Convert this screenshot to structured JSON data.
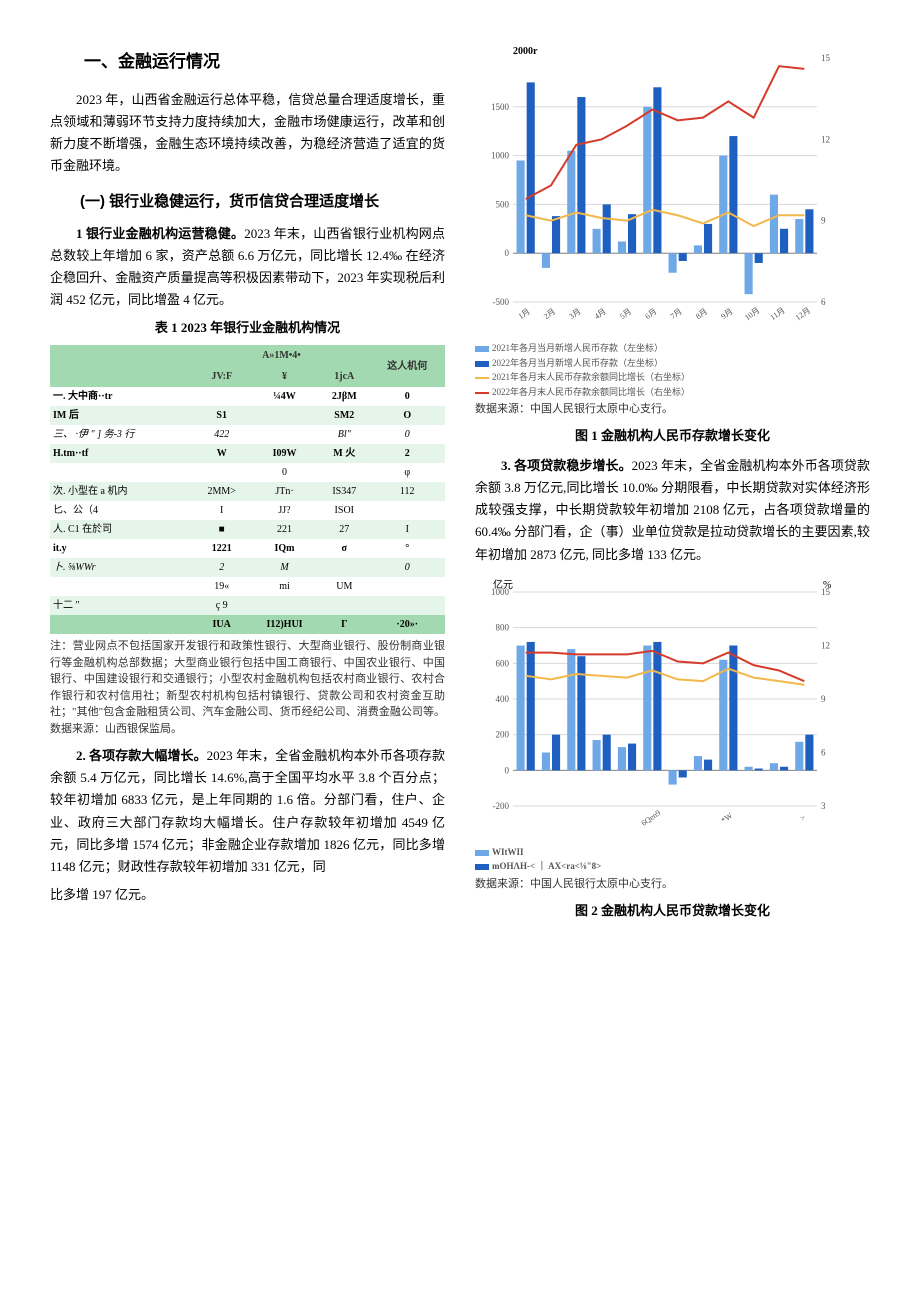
{
  "top_fragment": "比多增 197 亿元。",
  "section1": {
    "heading": "一、金融运行情况",
    "intro": "2023 年，山西省金融运行总体平稳，信贷总量合理适度增长，重点领域和薄弱环节支持力度持续加大，金融市场健康运行，改革和创新力度不断增强，金融生态环境持续改善，为稳经济营造了适宜的货币金融环境。",
    "sub1_heading": "(一) 银行业稳健运行，货币信贷合理适度增长",
    "p1_lead": "1 银行业金融机构运营稳健。",
    "p1_body": "2023 年末，山西省银行业机构网点总数较上年增加 6 家，资产总额 6.6 万亿元，同比增长 12.4‰ 在经济企稳回升、金融资产质量提高等积极因素带动下，2023 年实现税后利润 452 亿元，同比增盈 4 亿元。",
    "table_caption": "表 1 2023 年银行业金融机构情况",
    "p2_lead": "2. 各项存款大幅增长。",
    "p2_body": "2023 年末，全省金融机构本外币各项存款余额 5.4 万亿元，同比增长 14.6%,高于全国平均水平 3.8 个百分点；较年初增加 6833 亿元，是上年同期的 1.6 倍。分部门看，住户、企业、政府三大部门存款均大幅增长。住户存款较年初增加 4549 亿元，同比多增 1574 亿元；非金融企业存款增加 1826 亿元，同比多增 1148 亿元；财政性存款较年初增加 331 亿元，同",
    "p3_lead": "3. 各项贷款稳步增长。",
    "p3_body": "2023 年末，全省金融机构本外币各项贷款余额 3.8 万亿元,同比增长 10.0‰ 分期限看，中长期贷款对实体经济形成较强支撑，中长期贷款较年初增加 2108 亿元，占各项贷款增量的 60.4‰ 分部门看，企（事）业单位贷款是拉动贷款增长的主要因素,较年初增加 2873 亿元, 同比多增 133 亿元。"
  },
  "table1": {
    "header_group": "A»1M•4•",
    "columns": [
      "",
      "JV:F",
      "¥",
      "1jcA",
      "这人机何"
    ],
    "rows": [
      {
        "c": [
          "一. 大中商··tr",
          "",
          "¼4W",
          "2JβM",
          "0"
        ],
        "alt": false,
        "b": true
      },
      {
        "c": [
          "IM 后",
          "S1",
          "",
          "SM2",
          "O"
        ],
        "alt": true,
        "b": true
      },
      {
        "c": [
          "三、 ·伊 \" ] 务-3 行",
          "422",
          "",
          "Bl\"",
          "0"
        ],
        "alt": false,
        "b": false,
        "i": true
      },
      {
        "c": [
          "H.tm··tf",
          "W",
          "I09W",
          "M 火",
          "2"
        ],
        "alt": true,
        "b": true
      },
      {
        "c": [
          "",
          "",
          "0",
          "",
          "φ"
        ],
        "alt": false,
        "b": false
      },
      {
        "c": [
          "次. 小型在 a 机内",
          "2MM>",
          "JTn·",
          "IS347",
          "112"
        ],
        "alt": true,
        "b": false
      },
      {
        "c": [
          "匕、公（4",
          "I",
          "JJ?",
          "ISOI",
          ""
        ],
        "alt": false,
        "b": false
      },
      {
        "c": [
          "人. C1 在於司",
          "■",
          "221",
          "27",
          "I"
        ],
        "alt": true,
        "b": false
      },
      {
        "c": [
          "it.y",
          "1221",
          "IQm",
          "σ",
          "°"
        ],
        "alt": false,
        "b": true
      },
      {
        "c": [
          "卜. ⅝WWr",
          "2",
          "M",
          "",
          "0"
        ],
        "alt": true,
        "b": false,
        "i": true
      },
      {
        "c": [
          "",
          "19«",
          "mi",
          "UM",
          ""
        ],
        "alt": false,
        "b": false
      },
      {
        "c": [
          "十二 \"",
          "ç 9",
          "",
          "",
          ""
        ],
        "alt": true,
        "b": false
      }
    ],
    "total_row": [
      "",
      "IUA",
      "I12)HUI",
      "Γ",
      "·20»·"
    ]
  },
  "table_note": "注：营业网点不包括国家开发银行和政策性银行、大型商业银行、股份制商业银行等金融机构总部数据；大型商业银行包括中国工商银行、中国农业银行、中国银行、中国建设银行和交通银行；小型农村金融机构包括农村商业银行、农村合作银行和农村信用社；新型农村机构包括村镇银行、贷款公司和农村资金互助社；\"其他\"包含金融租赁公司、汽车金融公司、货币经纪公司、消费金融公司等。数据来源：山西银保监局。",
  "chart1": {
    "caption": "图 1 金融机构人民币存款增长变化",
    "source": "数据来源：中国人民银行太原中心支行。",
    "y_left_max": 2000,
    "y_left_label": "2000r",
    "y_left_ticks": [
      -500,
      0,
      500,
      1000,
      1500
    ],
    "y_right_ticks": [
      6,
      9,
      12,
      15
    ],
    "x_ticks": [
      "1月",
      "2月",
      "3月",
      "4月",
      "5月",
      "6月",
      "7月",
      "8月",
      "9月",
      "10月",
      "11月",
      "12月"
    ],
    "bars_a": [
      950,
      -150,
      1050,
      250,
      120,
      1500,
      -200,
      80,
      1000,
      -420,
      600,
      350
    ],
    "bars_b": [
      1750,
      380,
      1600,
      500,
      400,
      1700,
      -80,
      300,
      1200,
      -100,
      250,
      450
    ],
    "line_a": [
      9.2,
      9.0,
      9.3,
      9.1,
      9.0,
      9.4,
      9.2,
      8.9,
      9.3,
      8.8,
      9.2,
      9.2
    ],
    "line_b": [
      9.8,
      10.3,
      11.8,
      12.0,
      12.5,
      13.1,
      12.7,
      12.8,
      13.4,
      12.8,
      14.7,
      14.6
    ],
    "colors": {
      "bar_a": "#6fa8e6",
      "bar_b": "#1f5fbf",
      "line_a": "#f2b84b",
      "line_b": "#d63a2b",
      "grid": "#d9d9d9",
      "axis": "#888",
      "text": "#555"
    },
    "legend": [
      {
        "sw": "bar",
        "color": "#6fa8e6",
        "label": "2021年各月当月新增人民币存款（左坐标）"
      },
      {
        "sw": "bar",
        "color": "#1f5fbf",
        "label": "2022年各月当月新增人民币存款（左坐标）"
      },
      {
        "sw": "line",
        "color": "#f2b84b",
        "label": "2021年各月末人民币存款余额同比增长（右坐标）"
      },
      {
        "sw": "line",
        "color": "#d63a2b",
        "label": "2022年各月末人民币存款余额同比增长（右坐标）"
      }
    ]
  },
  "chart2": {
    "caption": "图 2 金融机构人民币贷款增长变化",
    "source": "数据来源：中国人民银行太原中心支行。",
    "y_left_ticks": [
      -200,
      0,
      200,
      400,
      600,
      800,
      1000
    ],
    "y_left_unit": "亿元",
    "y_right_unit": "%",
    "y_right_ticks": [
      3,
      6,
      9,
      12,
      15
    ],
    "x_ticks": [
      "",
      "",
      "",
      "",
      "",
      "6Qen9",
      "",
      "",
      "*W",
      "",
      "",
      ">"
    ],
    "bars_a": [
      700,
      100,
      680,
      170,
      130,
      700,
      -80,
      80,
      620,
      20,
      40,
      160
    ],
    "bars_b": [
      720,
      200,
      640,
      200,
      150,
      720,
      -40,
      60,
      700,
      10,
      20,
      200
    ],
    "line_a": [
      10.3,
      10.1,
      10.4,
      10.3,
      10.2,
      10.6,
      10.1,
      10.0,
      10.7,
      10.2,
      10.0,
      9.8
    ],
    "line_b": [
      11.6,
      11.6,
      11.5,
      11.5,
      11.5,
      11.7,
      11.1,
      11.0,
      11.6,
      10.9,
      10.6,
      10.0
    ],
    "colors": {
      "bar_a": "#6fa8e6",
      "bar_b": "#1f5fbf",
      "line_a": "#f2b84b",
      "line_b": "#d63a2b",
      "grid": "#d9d9d9",
      "axis": "#888",
      "text": "#555"
    },
    "legend_raw": [
      {
        "text": "WItWII",
        "color": "#6fa8e6",
        "sw": "bar"
      },
      {
        "text": "mOHΛH-< ｜ AX<ra<⅛\"8>",
        "color": "#1f5fbf",
        "sw": "bar"
      }
    ]
  }
}
